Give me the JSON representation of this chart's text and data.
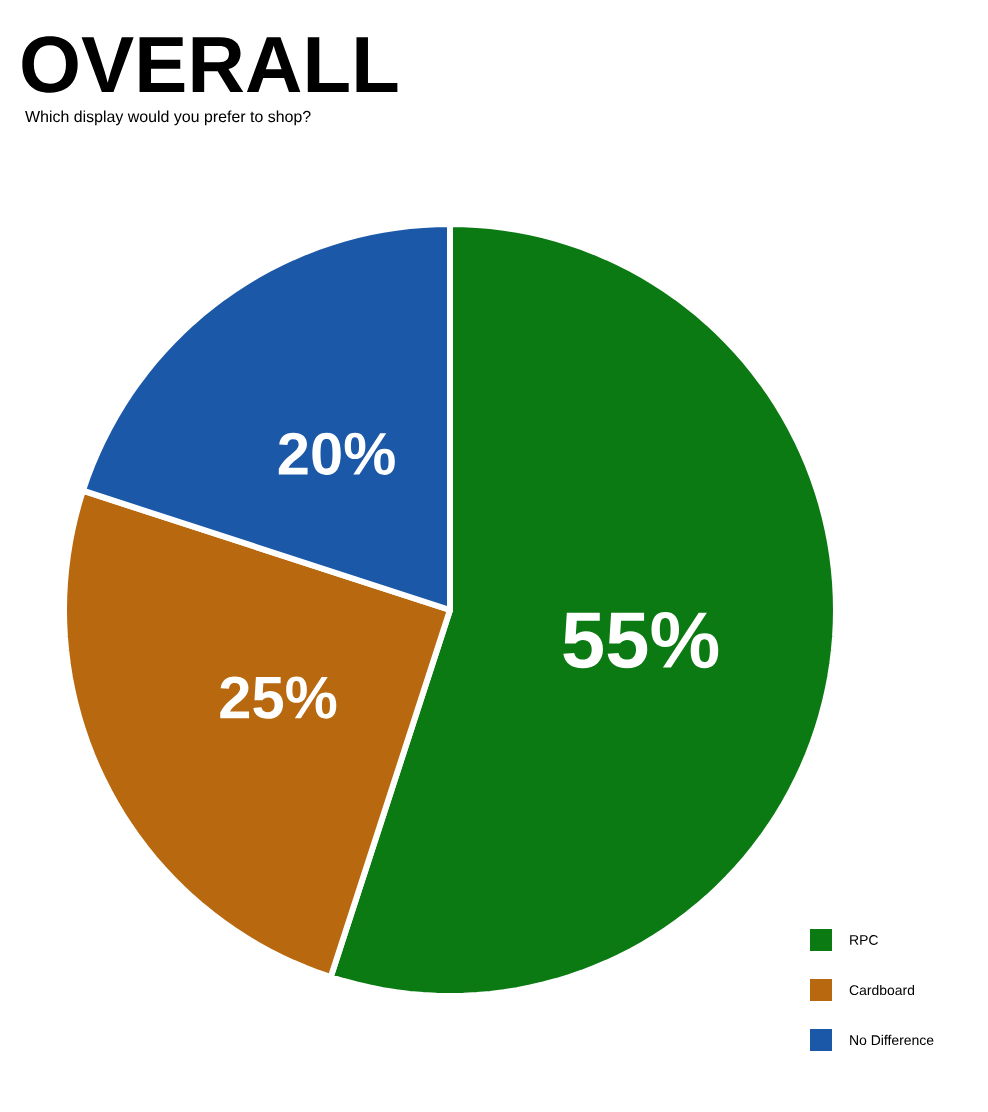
{
  "chart_data": {
    "type": "pie",
    "title": "OVERALL",
    "subtitle": "Which display would you prefer to shop?",
    "categories": [
      "RPC",
      "Cardboard",
      "No Difference"
    ],
    "values": [
      55,
      25,
      20
    ],
    "value_labels": [
      "55%",
      "25%",
      "20%"
    ],
    "colors": [
      "#0b7a12",
      "#b8680f",
      "#1b59a8"
    ],
    "legend": "bottom right"
  }
}
